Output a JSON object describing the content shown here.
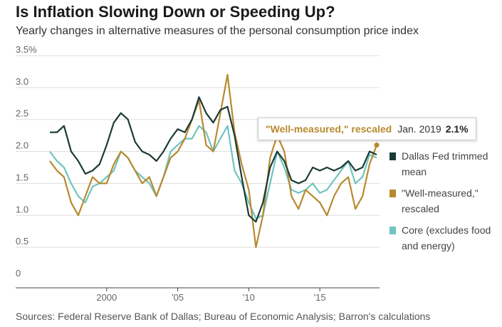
{
  "title": "Is Inflation Slowing Down or Speeding Up?",
  "subtitle": "Yearly changes in alternative measures of the personal consumption price index",
  "source": "Sources: Federal Reserve Bank of Dallas; Bureau of Economic Analysis; Barron's calculations",
  "tooltip": {
    "series": "\"Well-measured,\" rescaled",
    "date": "Jan. 2019",
    "value": "2.1%"
  },
  "colors": {
    "dallas": "#1b3a35",
    "well": "#b8892f",
    "core": "#6fc4bf",
    "grid": "#dddddd",
    "axis": "#444444"
  },
  "legend": [
    {
      "label": "Dallas Fed trimmed mean",
      "color": "#1b3a35"
    },
    {
      "label": "\"Well-measured,\" rescaled",
      "color": "#b8892f"
    },
    {
      "label": "Core (excludes food and energy)",
      "color": "#6fc4bf"
    }
  ],
  "chart_data": {
    "type": "line",
    "ylim": [
      0,
      3.5
    ],
    "xlim": [
      1995.5,
      2019.2
    ],
    "yticks": [
      0,
      0.5,
      1.0,
      1.5,
      2.0,
      2.5,
      3.0,
      3.5
    ],
    "yticklabels": [
      "0",
      "0.5",
      "1.0",
      "1.5",
      "2.0",
      "2.5",
      "3.0",
      "3.5%"
    ],
    "xticks": [
      2000,
      2005,
      2010,
      2015
    ],
    "xticklabels": [
      "2000",
      "'05",
      "'10",
      "'15"
    ],
    "grid": true,
    "legend_position": "right",
    "series": [
      {
        "name": "Dallas Fed trimmed mean",
        "color": "#1b3a35",
        "points": [
          [
            1996.0,
            2.3
          ],
          [
            1996.5,
            2.3
          ],
          [
            1997.0,
            2.4
          ],
          [
            1997.5,
            2.0
          ],
          [
            1998.0,
            1.85
          ],
          [
            1998.5,
            1.65
          ],
          [
            1999.0,
            1.7
          ],
          [
            1999.5,
            1.8
          ],
          [
            2000.0,
            2.1
          ],
          [
            2000.5,
            2.45
          ],
          [
            2001.0,
            2.6
          ],
          [
            2001.5,
            2.5
          ],
          [
            2002.0,
            2.15
          ],
          [
            2002.5,
            2.0
          ],
          [
            2003.0,
            1.95
          ],
          [
            2003.5,
            1.85
          ],
          [
            2004.0,
            2.0
          ],
          [
            2004.5,
            2.2
          ],
          [
            2005.0,
            2.35
          ],
          [
            2005.5,
            2.3
          ],
          [
            2006.0,
            2.5
          ],
          [
            2006.5,
            2.85
          ],
          [
            2007.0,
            2.6
          ],
          [
            2007.5,
            2.45
          ],
          [
            2008.0,
            2.65
          ],
          [
            2008.5,
            2.7
          ],
          [
            2009.0,
            2.25
          ],
          [
            2009.5,
            1.6
          ],
          [
            2010.0,
            1.0
          ],
          [
            2010.5,
            0.9
          ],
          [
            2011.0,
            1.2
          ],
          [
            2011.5,
            1.75
          ],
          [
            2012.0,
            2.0
          ],
          [
            2012.5,
            1.85
          ],
          [
            2013.0,
            1.55
          ],
          [
            2013.5,
            1.5
          ],
          [
            2014.0,
            1.55
          ],
          [
            2014.5,
            1.75
          ],
          [
            2015.0,
            1.7
          ],
          [
            2015.5,
            1.75
          ],
          [
            2016.0,
            1.7
          ],
          [
            2016.5,
            1.75
          ],
          [
            2017.0,
            1.85
          ],
          [
            2017.5,
            1.7
          ],
          [
            2018.0,
            1.75
          ],
          [
            2018.5,
            2.0
          ],
          [
            2019.0,
            1.95
          ]
        ]
      },
      {
        "name": "\"Well-measured,\" rescaled",
        "color": "#b8892f",
        "points": [
          [
            1996.0,
            1.85
          ],
          [
            1996.5,
            1.7
          ],
          [
            1997.0,
            1.6
          ],
          [
            1997.5,
            1.2
          ],
          [
            1998.0,
            1.0
          ],
          [
            1998.5,
            1.3
          ],
          [
            1999.0,
            1.6
          ],
          [
            1999.5,
            1.5
          ],
          [
            2000.0,
            1.5
          ],
          [
            2000.5,
            1.8
          ],
          [
            2001.0,
            2.0
          ],
          [
            2001.5,
            1.9
          ],
          [
            2002.0,
            1.7
          ],
          [
            2002.5,
            1.5
          ],
          [
            2003.0,
            1.6
          ],
          [
            2003.5,
            1.3
          ],
          [
            2004.0,
            1.6
          ],
          [
            2004.5,
            1.9
          ],
          [
            2005.0,
            2.0
          ],
          [
            2005.5,
            2.2
          ],
          [
            2006.0,
            2.5
          ],
          [
            2006.5,
            2.8
          ],
          [
            2007.0,
            2.1
          ],
          [
            2007.5,
            2.0
          ],
          [
            2008.0,
            2.6
          ],
          [
            2008.5,
            3.2
          ],
          [
            2009.0,
            2.3
          ],
          [
            2009.5,
            1.8
          ],
          [
            2010.0,
            1.4
          ],
          [
            2010.5,
            0.5
          ],
          [
            2011.0,
            1.0
          ],
          [
            2011.5,
            1.9
          ],
          [
            2012.0,
            2.25
          ],
          [
            2012.5,
            2.0
          ],
          [
            2013.0,
            1.3
          ],
          [
            2013.5,
            1.1
          ],
          [
            2014.0,
            1.4
          ],
          [
            2014.5,
            1.3
          ],
          [
            2015.0,
            1.2
          ],
          [
            2015.5,
            1.0
          ],
          [
            2016.0,
            1.3
          ],
          [
            2016.5,
            1.5
          ],
          [
            2017.0,
            1.6
          ],
          [
            2017.5,
            1.1
          ],
          [
            2018.0,
            1.3
          ],
          [
            2018.5,
            1.8
          ],
          [
            2019.0,
            2.1
          ]
        ]
      },
      {
        "name": "Core (excludes food and energy)",
        "color": "#6fc4bf",
        "points": [
          [
            1996.0,
            2.0
          ],
          [
            1996.5,
            1.85
          ],
          [
            1997.0,
            1.75
          ],
          [
            1997.5,
            1.5
          ],
          [
            1998.0,
            1.3
          ],
          [
            1998.5,
            1.2
          ],
          [
            1999.0,
            1.45
          ],
          [
            1999.5,
            1.5
          ],
          [
            2000.0,
            1.6
          ],
          [
            2000.5,
            1.7
          ],
          [
            2001.0,
            2.0
          ],
          [
            2001.5,
            1.9
          ],
          [
            2002.0,
            1.7
          ],
          [
            2002.5,
            1.6
          ],
          [
            2003.0,
            1.5
          ],
          [
            2003.5,
            1.3
          ],
          [
            2004.0,
            1.6
          ],
          [
            2004.5,
            2.0
          ],
          [
            2005.0,
            2.1
          ],
          [
            2005.5,
            2.2
          ],
          [
            2006.0,
            2.2
          ],
          [
            2006.5,
            2.4
          ],
          [
            2007.0,
            2.3
          ],
          [
            2007.5,
            2.0
          ],
          [
            2008.0,
            2.2
          ],
          [
            2008.5,
            2.4
          ],
          [
            2009.0,
            1.7
          ],
          [
            2009.5,
            1.5
          ],
          [
            2010.0,
            1.2
          ],
          [
            2010.5,
            0.95
          ],
          [
            2011.0,
            1.0
          ],
          [
            2011.5,
            1.5
          ],
          [
            2012.0,
            2.0
          ],
          [
            2012.5,
            1.75
          ],
          [
            2013.0,
            1.4
          ],
          [
            2013.5,
            1.35
          ],
          [
            2014.0,
            1.4
          ],
          [
            2014.5,
            1.5
          ],
          [
            2015.0,
            1.35
          ],
          [
            2015.5,
            1.4
          ],
          [
            2016.0,
            1.55
          ],
          [
            2016.5,
            1.7
          ],
          [
            2017.0,
            1.85
          ],
          [
            2017.5,
            1.5
          ],
          [
            2018.0,
            1.6
          ],
          [
            2018.5,
            1.95
          ],
          [
            2019.0,
            1.9
          ]
        ]
      }
    ]
  }
}
